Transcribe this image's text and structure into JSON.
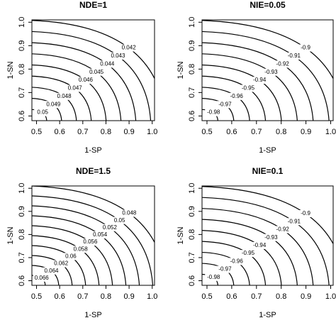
{
  "chart_data": [
    {
      "type": "contour",
      "title": "NDE=1",
      "xlabel": "1-SP",
      "ylabel": "1-SN",
      "xlim": [
        0.48,
        1.01
      ],
      "ylim": [
        0.58,
        1.01
      ],
      "xticks": [
        0.5,
        0.6,
        0.7,
        0.8,
        0.9,
        {
          "value": 1,
          "label": "1.0"
        }
      ],
      "yticks": [
        0.6,
        0.7,
        0.8,
        0.9,
        {
          "value": 1,
          "label": "1.0"
        }
      ],
      "levels": [
        0.05,
        0.049,
        0.048,
        0.047,
        0.046,
        0.045,
        0.044,
        0.043,
        0.042
      ],
      "color": "#000000"
    },
    {
      "type": "contour",
      "title": "NIE=0.05",
      "xlabel": "1-SP",
      "ylabel": "1-SN",
      "xlim": [
        0.48,
        1.01
      ],
      "ylim": [
        0.58,
        1.01
      ],
      "xticks": [
        0.5,
        0.6,
        0.7,
        0.8,
        0.9,
        {
          "value": 1,
          "label": "1.0"
        }
      ],
      "yticks": [
        0.6,
        0.7,
        0.8,
        0.9,
        {
          "value": 1,
          "label": "1.0"
        }
      ],
      "levels": [
        -0.98,
        -0.97,
        -0.96,
        -0.95,
        -0.94,
        -0.93,
        -0.92,
        -0.91,
        -0.9
      ],
      "color": "#000000"
    },
    {
      "type": "contour",
      "title": "NDE=1.5",
      "xlabel": "1-SP",
      "ylabel": "1-SN",
      "xlim": [
        0.48,
        1.01
      ],
      "ylim": [
        0.58,
        1.01
      ],
      "xticks": [
        0.5,
        0.6,
        0.7,
        0.8,
        0.9,
        {
          "value": 1,
          "label": "1.0"
        }
      ],
      "yticks": [
        0.6,
        0.7,
        0.8,
        0.9,
        {
          "value": 1,
          "label": "1.0"
        }
      ],
      "levels": [
        0.066,
        0.064,
        0.062,
        0.06,
        0.058,
        0.056,
        0.054,
        0.052,
        0.05,
        0.048
      ],
      "color": "#000000"
    },
    {
      "type": "contour",
      "title": "NIE=0.1",
      "xlabel": "1-SP",
      "ylabel": "1-SN",
      "xlim": [
        0.48,
        1.01
      ],
      "ylim": [
        0.58,
        1.01
      ],
      "xticks": [
        0.5,
        0.6,
        0.7,
        0.8,
        0.9,
        {
          "value": 1,
          "label": "1.0"
        }
      ],
      "yticks": [
        0.6,
        0.7,
        0.8,
        0.9,
        {
          "value": 1,
          "label": "1.0"
        }
      ],
      "levels": [
        -0.98,
        -0.97,
        -0.96,
        -0.95,
        -0.94,
        -0.93,
        -0.92,
        -0.91,
        -0.9
      ],
      "color": "#000000"
    }
  ]
}
